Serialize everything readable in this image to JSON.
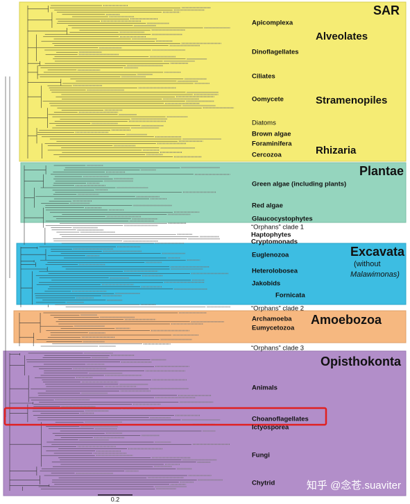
{
  "supergroups": {
    "sar": "SAR",
    "alveolates": "Alveolates",
    "stramenopiles": "Stramenopiles",
    "rhizaria": "Rhizaria",
    "plantae": "Plantae",
    "excavata": "Excavata",
    "excavata_note_1": "(without",
    "excavata_note_2": "Malawimonas)",
    "amoebozoa": "Amoebozoa",
    "opisthokonta": "Opisthokonta"
  },
  "clades": {
    "apicomplexa": "Apicomplexa",
    "dinoflagellates": "Dinoflagellates",
    "ciliates": "Ciliates",
    "oomycete": "Oomycete",
    "diatoms": "Diatoms",
    "brown_algae": "Brown algae",
    "foraminifera": "Foraminifera",
    "cercozoa": "Cercozoa",
    "green_algae": "Green algae (including plants)",
    "red_algae": "Red algae",
    "glaucocystophytes": "Glaucocystophytes",
    "orphans_1": "“Orphans” clade 1",
    "haptophytes": "Haptophytes",
    "cryptomonads": "Cryptomonads",
    "euglenozoa": "Euglenozoa",
    "heterolobosea": "Heterolobosea",
    "jakobids": "Jakobids",
    "fornicata": "Fornicata",
    "orphans_2": "“Orphans” clade 2",
    "archamoeba": "Archamoeba",
    "eumycetozoa": "Eumycetozoa",
    "orphans_3": "“Orphans” clade 3",
    "animals": "Animals",
    "choanoflagellates": "Choanoflagellates",
    "ictyosporea": "Ictyosporea",
    "fungi": "Fungi",
    "chytrid": "Chytrid"
  },
  "scale_bar": "0.2",
  "watermark": "知乎 @念苍.suaviter"
}
